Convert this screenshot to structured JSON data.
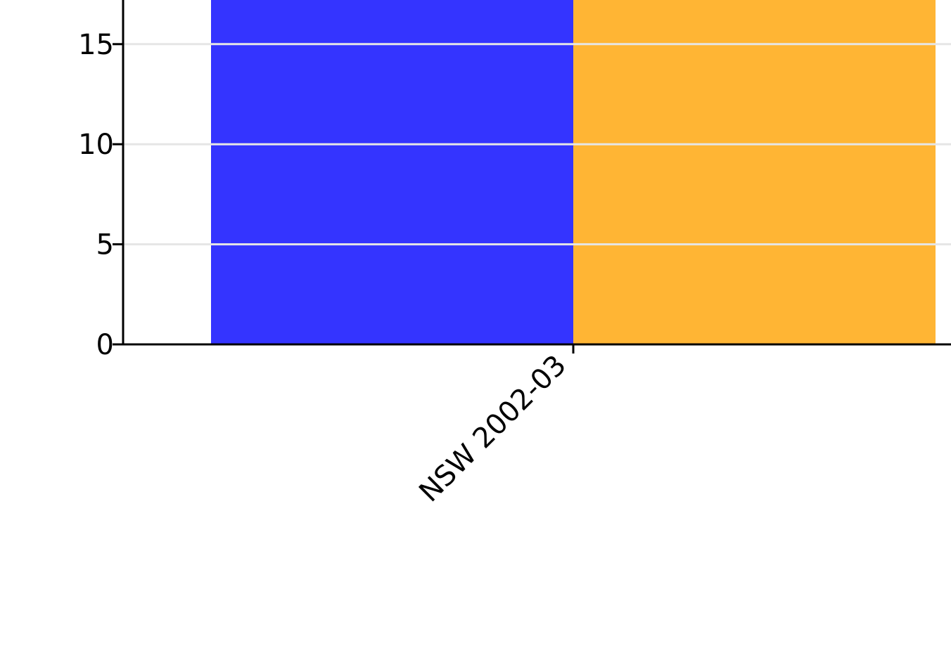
{
  "chart_data": {
    "type": "bar",
    "title": "",
    "xlabel": "",
    "ylabel": "",
    "categories": [
      "NSW 2002-03"
    ],
    "series": [
      {
        "values": [
          17.3
        ],
        "color": "#3434ff"
      },
      {
        "values": [
          17.3
        ],
        "color": "#ffb534"
      }
    ],
    "ylim": [
      0,
      17.3
    ],
    "yticks": [
      0,
      5,
      10,
      15
    ],
    "grid": true,
    "grid_color": "#e6e6e6",
    "legend": "none"
  }
}
